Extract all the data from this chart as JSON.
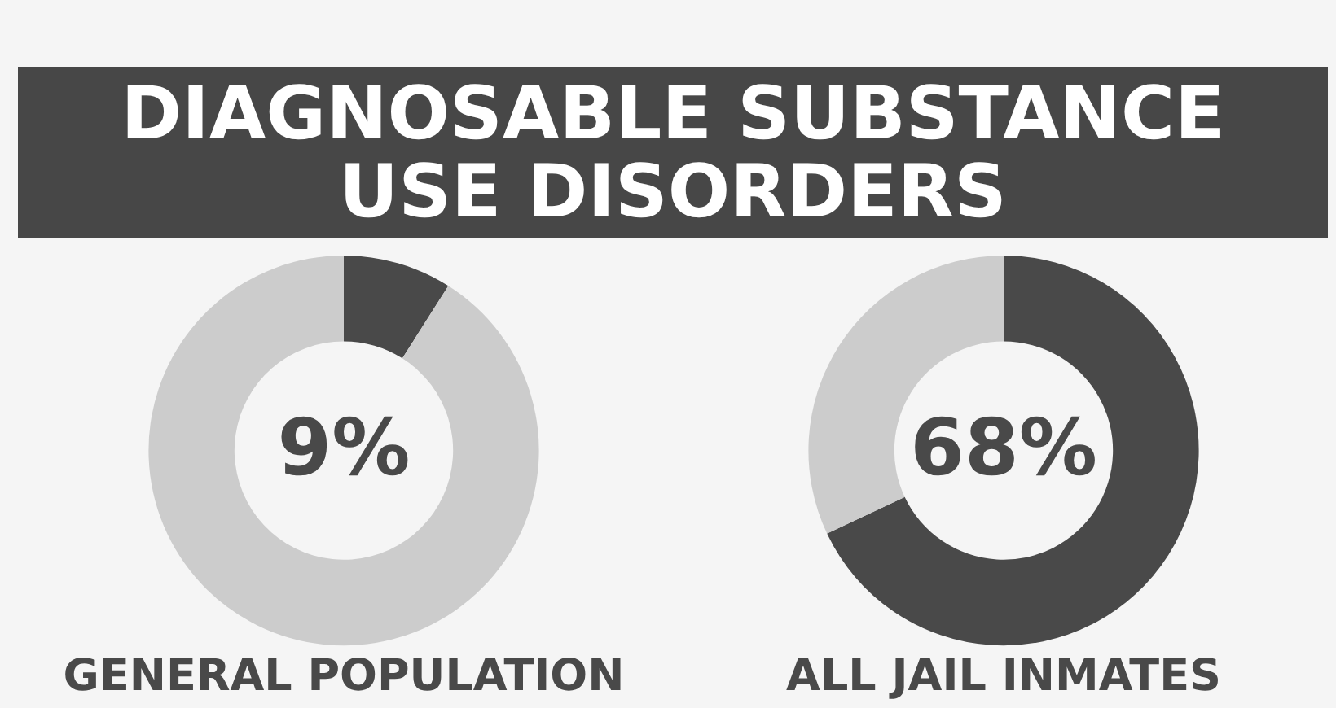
{
  "chart_data": [
    {
      "type": "other",
      "title": "DIAGNOSABLE SUBSTANCE USE DISORDERS"
    },
    {
      "type": "donut",
      "title": "GENERAL POPULATION",
      "categories": [
        null,
        null
      ],
      "values": [
        9,
        91
      ],
      "colors": [
        "#494949",
        "#cccccc"
      ],
      "value_labels": [
        "9%",
        null
      ]
    },
    {
      "type": "donut",
      "title": "ALL JAIL INMATES",
      "categories": [
        null,
        null
      ],
      "values": [
        68,
        32
      ],
      "colors": [
        "#494949",
        "#cccccc"
      ],
      "value_labels": [
        "68%",
        null
      ]
    }
  ]
}
